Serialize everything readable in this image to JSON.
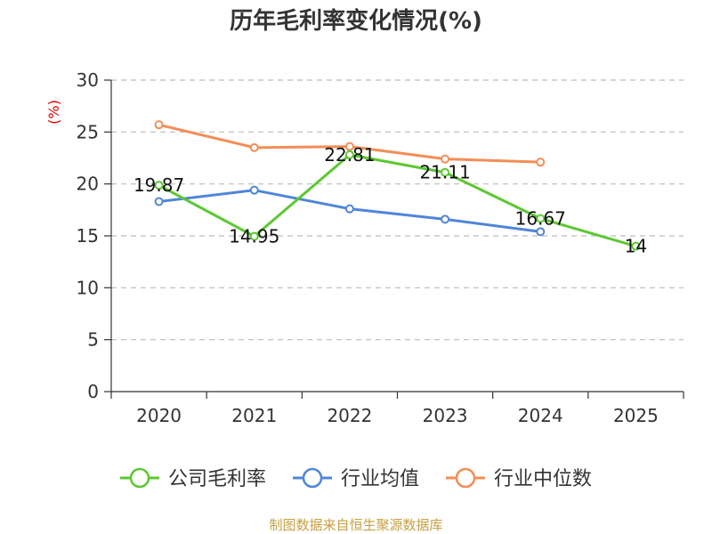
{
  "chart_data": {
    "type": "line",
    "title": "历年毛利率变化情况(%)",
    "ylabel": "(%)",
    "categories": [
      "2020",
      "2021",
      "2022",
      "2023",
      "2024",
      "2025"
    ],
    "ylim": [
      0,
      30
    ],
    "yticks": [
      0,
      5,
      10,
      15,
      20,
      25,
      30
    ],
    "grid": true,
    "legend": "bottom",
    "series": [
      {
        "name": "公司毛利率",
        "color": "#5cc832",
        "values": [
          19.87,
          14.95,
          22.81,
          21.11,
          16.67,
          14
        ],
        "labels": [
          "19.87",
          "14.95",
          "22.81",
          "21.11",
          "16.67",
          "14"
        ]
      },
      {
        "name": "行业均值",
        "color": "#4f86d9",
        "values": [
          18.3,
          19.4,
          17.6,
          16.6,
          15.4,
          null
        ]
      },
      {
        "name": "行业中位数",
        "color": "#f48d56",
        "values": [
          25.7,
          23.5,
          23.6,
          22.4,
          22.1,
          null
        ]
      }
    ]
  },
  "footer": {
    "source": "制图数据来自恒生聚源数据库"
  }
}
